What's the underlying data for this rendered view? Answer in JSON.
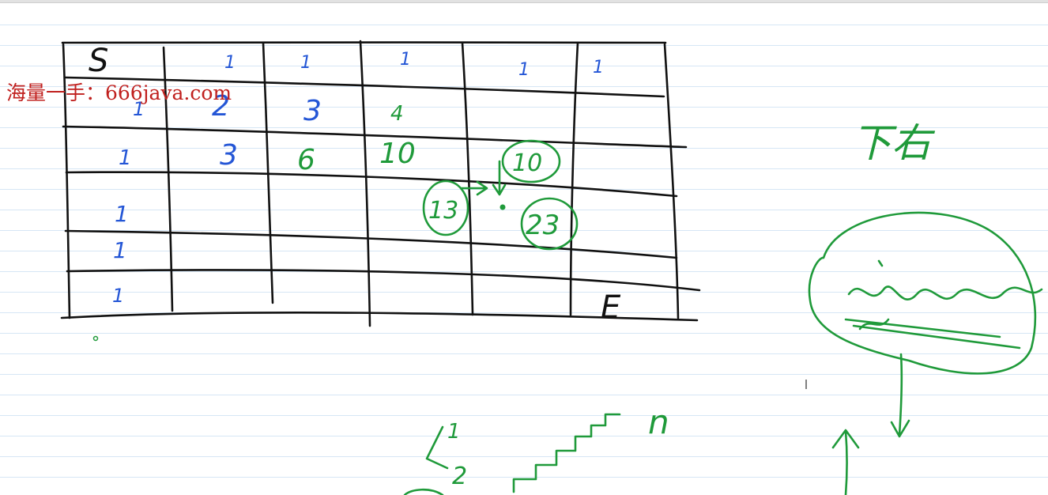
{
  "watermark": "海量一手：666java.com",
  "grid": {
    "start_label": "S",
    "end_label": "E",
    "row1": [
      "1",
      "1",
      "1",
      "1",
      "1"
    ],
    "row2": [
      "1",
      "2",
      "3",
      "4"
    ],
    "row3": [
      "1",
      "3",
      "6",
      "10"
    ],
    "col1_extra": [
      "1",
      "1",
      "1"
    ],
    "cell_up": "10",
    "cell_left": "13",
    "cell_sum": "23"
  },
  "side_title": "下右",
  "stairs": {
    "step1": "1",
    "step2": "2",
    "n_label": "n"
  },
  "colors": {
    "blue": "#2456d6",
    "green": "#1f9a3a",
    "black": "#111111",
    "watermark": "#c0201e",
    "rules": "#d6e6f5"
  }
}
